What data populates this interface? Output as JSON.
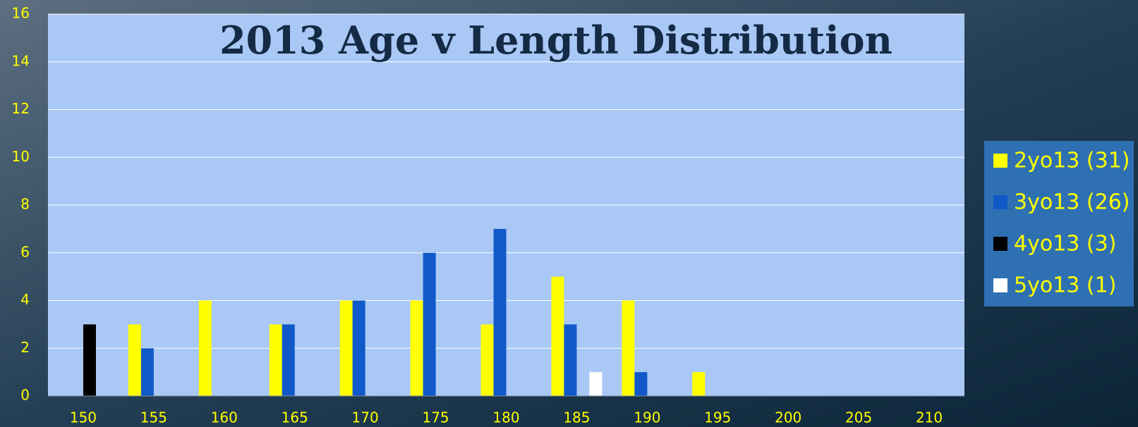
{
  "chart_data": {
    "type": "bar",
    "title": "2013 Age v  Length Distribution",
    "categories": [
      "150",
      "155",
      "160",
      "165",
      "170",
      "175",
      "180",
      "185",
      "190",
      "195",
      "200",
      "205",
      "210"
    ],
    "series": [
      {
        "name": "2yo13 (31)",
        "color": "#ffff00",
        "values": [
          0,
          3,
          4,
          3,
          4,
          4,
          3,
          5,
          4,
          1,
          0,
          0,
          0
        ]
      },
      {
        "name": "3yo13 (26)",
        "color": "#1159c9",
        "values": [
          0,
          2,
          0,
          3,
          4,
          6,
          7,
          3,
          1,
          0,
          0,
          0,
          0
        ]
      },
      {
        "name": "4yo13 (3)",
        "color": "#000000",
        "values": [
          3,
          0,
          0,
          0,
          0,
          0,
          0,
          0,
          0,
          0,
          0,
          0,
          0
        ]
      },
      {
        "name": "5yo13 (1)",
        "color": "#ffffff",
        "values": [
          0,
          0,
          0,
          0,
          0,
          0,
          0,
          1,
          0,
          0,
          0,
          0,
          0
        ]
      }
    ],
    "ylim": [
      0,
      16
    ],
    "yticks": [
      0,
      2,
      4,
      6,
      8,
      10,
      12,
      14,
      16
    ],
    "grid": true,
    "legend": "right"
  }
}
